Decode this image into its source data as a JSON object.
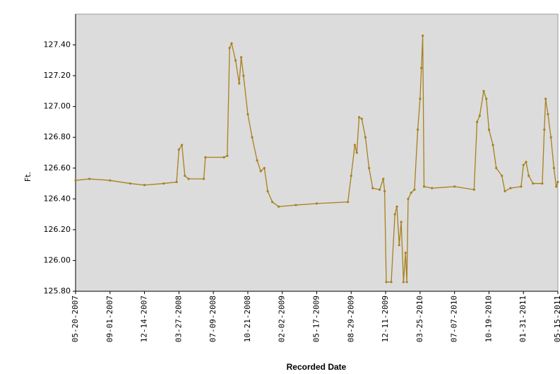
{
  "chart_data": {
    "type": "line",
    "x_label": "Recorded Date",
    "y_label": "Ft.",
    "x": [
      "2007-05-20",
      "2007-07-01",
      "2007-09-01",
      "2007-11-01",
      "2007-12-14",
      "2008-02-10",
      "2008-03-20",
      "2008-03-27",
      "2008-04-05",
      "2008-04-14",
      "2008-04-25",
      "2008-06-10",
      "2008-06-15",
      "2008-08-10",
      "2008-08-20",
      "2008-08-27",
      "2008-09-02",
      "2008-09-14",
      "2008-09-25",
      "2008-10-01",
      "2008-10-08",
      "2008-10-21",
      "2008-11-03",
      "2008-11-18",
      "2008-11-29",
      "2008-12-10",
      "2008-12-20",
      "2009-01-03",
      "2009-01-22",
      "2009-03-15",
      "2009-05-17",
      "2009-08-19",
      "2009-08-29",
      "2009-09-09",
      "2009-09-15",
      "2009-09-22",
      "2009-09-30",
      "2009-10-11",
      "2009-10-22",
      "2009-11-02",
      "2009-11-23",
      "2009-12-04",
      "2009-12-08",
      "2009-12-13",
      "2009-12-28",
      "2010-01-08",
      "2010-01-14",
      "2010-01-21",
      "2010-01-27",
      "2010-02-03",
      "2010-02-09",
      "2010-02-13",
      "2010-02-17",
      "2010-02-26",
      "2010-03-08",
      "2010-03-18",
      "2010-03-25",
      "2010-03-29",
      "2010-04-02",
      "2010-04-06",
      "2010-04-30",
      "2010-07-07",
      "2010-09-04",
      "2010-09-13",
      "2010-09-21",
      "2010-10-03",
      "2010-10-11",
      "2010-10-19",
      "2010-10-31",
      "2010-11-10",
      "2010-11-27",
      "2010-12-06",
      "2010-12-23",
      "2011-01-24",
      "2011-01-31",
      "2011-02-08",
      "2011-02-16",
      "2011-03-01",
      "2011-03-29",
      "2011-04-04",
      "2011-04-08",
      "2011-04-15",
      "2011-04-24",
      "2011-05-03",
      "2011-05-10",
      "2011-05-15"
    ],
    "series": [
      {
        "color": "#a8801e",
        "values": [
          126.52,
          126.53,
          126.52,
          126.5,
          126.49,
          126.5,
          126.51,
          126.72,
          126.75,
          126.55,
          126.53,
          126.53,
          126.67,
          126.67,
          126.68,
          127.38,
          127.41,
          127.3,
          127.15,
          127.32,
          127.2,
          126.95,
          126.8,
          126.65,
          126.58,
          126.6,
          126.45,
          126.38,
          126.35,
          126.36,
          126.37,
          126.38,
          126.55,
          126.75,
          126.7,
          126.93,
          126.92,
          126.8,
          126.6,
          126.47,
          126.46,
          126.53,
          126.45,
          125.86,
          125.86,
          126.3,
          126.35,
          126.1,
          126.25,
          125.86,
          126.05,
          125.86,
          126.4,
          126.44,
          126.46,
          126.85,
          127.05,
          127.25,
          127.46,
          126.48,
          126.47,
          126.48,
          126.46,
          126.9,
          126.94,
          127.1,
          127.05,
          126.85,
          126.75,
          126.6,
          126.55,
          126.45,
          126.47,
          126.48,
          126.62,
          126.64,
          126.55,
          126.5,
          126.5,
          126.85,
          127.05,
          126.95,
          126.8,
          126.6,
          126.48,
          126.51
        ]
      }
    ],
    "xlim": [
      "2007-05-20",
      "2011-05-15"
    ],
    "xticks": [
      {
        "value": "2007-05-20",
        "label": "05-20-2007"
      },
      {
        "value": "2007-09-01",
        "label": "09-01-2007"
      },
      {
        "value": "2007-12-14",
        "label": "12-14-2007"
      },
      {
        "value": "2008-03-27",
        "label": "03-27-2008"
      },
      {
        "value": "2008-07-09",
        "label": "07-09-2008"
      },
      {
        "value": "2008-10-21",
        "label": "10-21-2008"
      },
      {
        "value": "2009-02-02",
        "label": "02-02-2009"
      },
      {
        "value": "2009-05-17",
        "label": "05-17-2009"
      },
      {
        "value": "2009-08-29",
        "label": "08-29-2009"
      },
      {
        "value": "2009-12-11",
        "label": "12-11-2009"
      },
      {
        "value": "2010-03-25",
        "label": "03-25-2010"
      },
      {
        "value": "2010-07-07",
        "label": "07-07-2010"
      },
      {
        "value": "2010-10-19",
        "label": "10-19-2010"
      },
      {
        "value": "2011-01-31",
        "label": "01-31-2011"
      },
      {
        "value": "2011-05-15",
        "label": "05-15-2011"
      }
    ],
    "ylim": [
      125.8,
      127.6
    ],
    "yticks": [
      {
        "value": 125.8,
        "label": "125.80"
      },
      {
        "value": 126.0,
        "label": "126.00"
      },
      {
        "value": 126.2,
        "label": "126.20"
      },
      {
        "value": 126.4,
        "label": "126.40"
      },
      {
        "value": 126.6,
        "label": "126.60"
      },
      {
        "value": 126.8,
        "label": "126.80"
      },
      {
        "value": 127.0,
        "label": "127.00"
      },
      {
        "value": 127.2,
        "label": "127.20"
      },
      {
        "value": 127.4,
        "label": "127.40"
      }
    ]
  }
}
